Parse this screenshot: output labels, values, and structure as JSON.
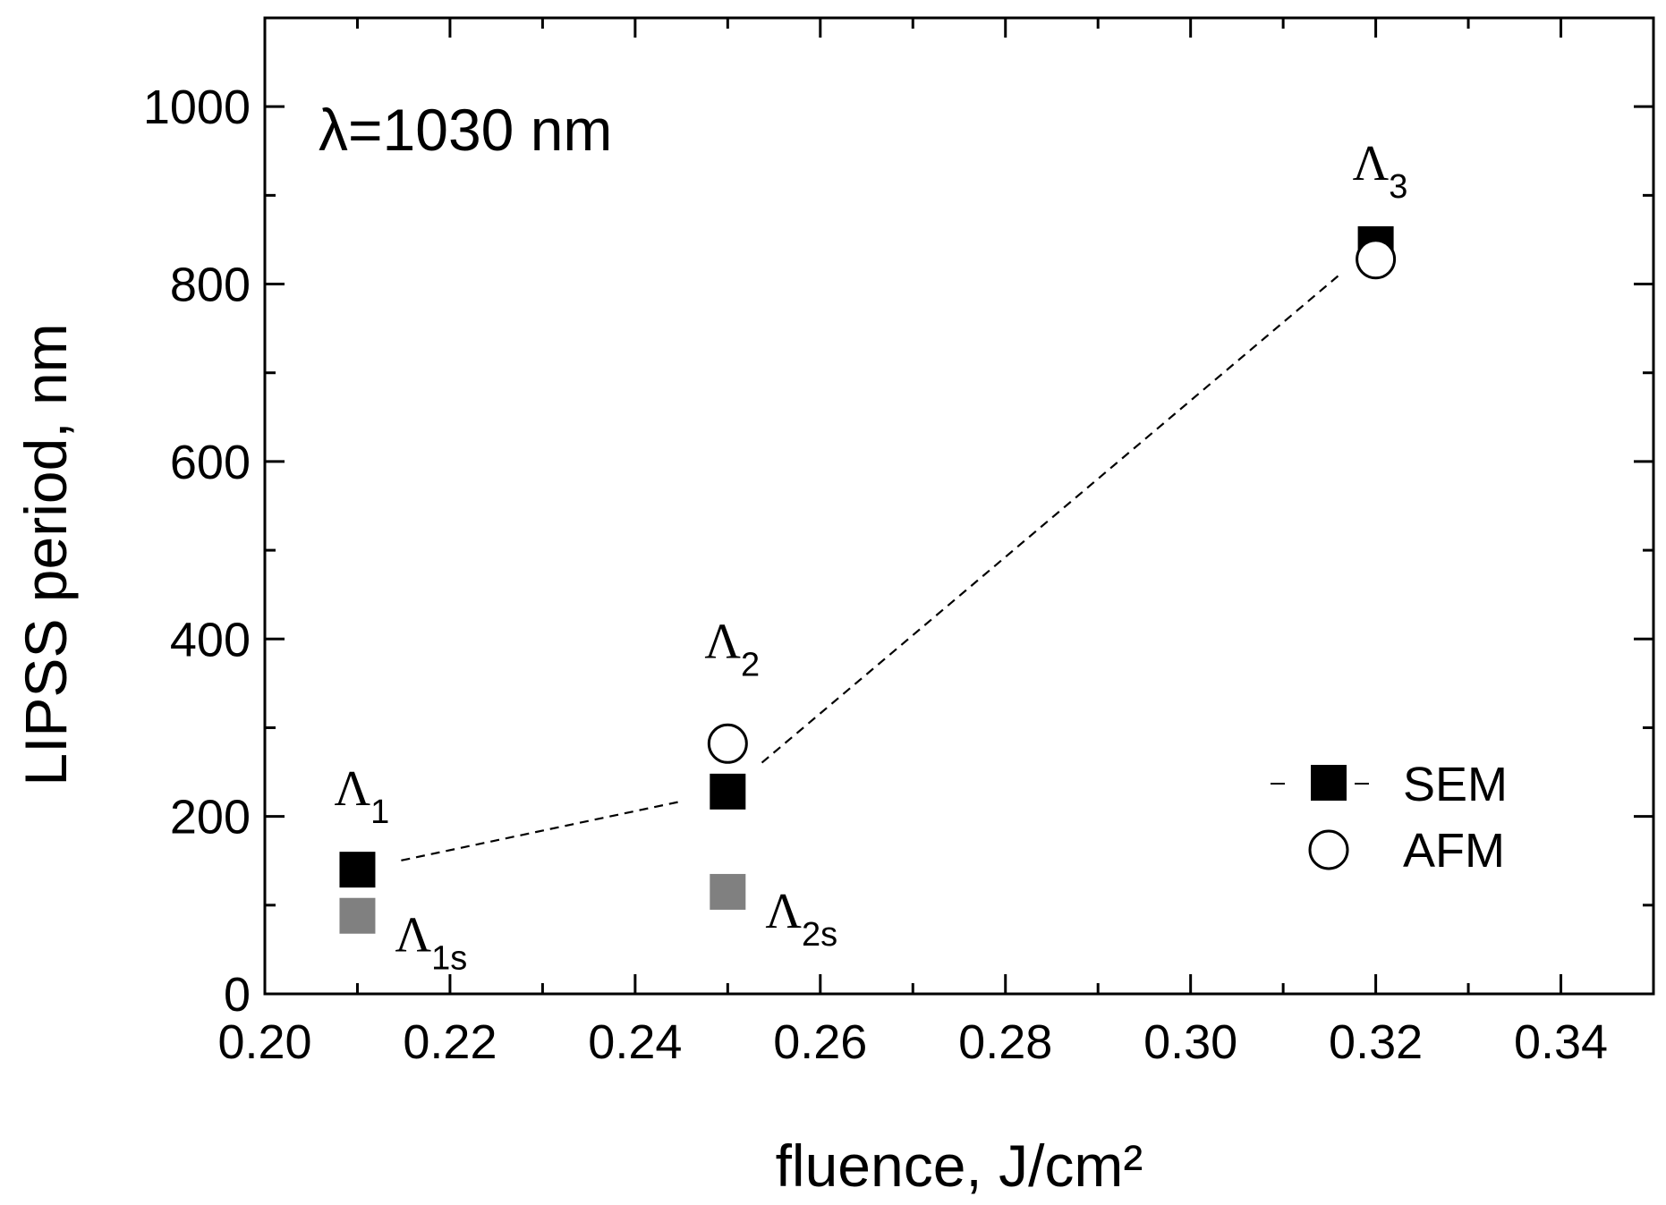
{
  "chart_data": {
    "type": "scatter",
    "title": "",
    "annotation": "λ=1030 nm",
    "xlabel": "fluence, J/cm²",
    "ylabel": "LIPSS period, nm",
    "xlim": [
      0.2,
      0.35
    ],
    "ylim": [
      0,
      1100
    ],
    "xticks": [
      "0.20",
      "0.22",
      "0.24",
      "0.26",
      "0.28",
      "0.30",
      "0.32",
      "0.34"
    ],
    "yticks": [
      "0",
      "200",
      "400",
      "600",
      "800",
      "1000"
    ],
    "grid": false,
    "legend_position": "right",
    "series": [
      {
        "name": "SEM",
        "marker": "filled-square",
        "line": "dashed",
        "color": "#000000",
        "points": [
          {
            "x": 0.21,
            "y": 140
          },
          {
            "x": 0.25,
            "y": 228
          },
          {
            "x": 0.32,
            "y": 845
          }
        ]
      },
      {
        "name": "AFM",
        "marker": "open-circle",
        "line": "none",
        "color": "#000000",
        "points": [
          {
            "x": 0.25,
            "y": 282
          },
          {
            "x": 0.32,
            "y": 828
          }
        ]
      },
      {
        "name": "",
        "marker": "filled-square",
        "line": "none",
        "color": "#808080",
        "points": [
          {
            "x": 0.21,
            "y": 88
          },
          {
            "x": 0.25,
            "y": 115
          }
        ]
      }
    ],
    "point_labels": [
      {
        "main": "Λ",
        "sub": "1",
        "x": 0.21,
        "y": 140,
        "position": "above"
      },
      {
        "main": "Λ",
        "sub": "2",
        "x": 0.25,
        "y": 282,
        "position": "above"
      },
      {
        "main": "Λ",
        "sub": "3",
        "x": 0.32,
        "y": 845,
        "position": "above"
      },
      {
        "main": "Λ",
        "sub": "1s",
        "x": 0.21,
        "y": 88,
        "position": "right"
      },
      {
        "main": "Λ",
        "sub": "2s",
        "x": 0.25,
        "y": 115,
        "position": "right"
      }
    ]
  }
}
